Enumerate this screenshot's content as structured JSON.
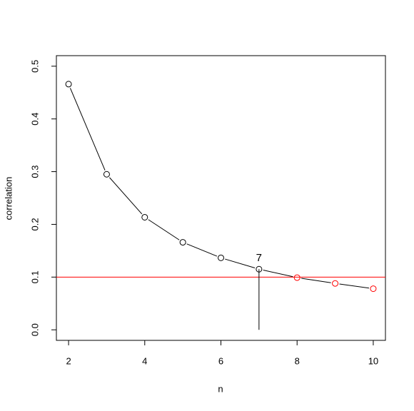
{
  "chart_data": {
    "type": "line",
    "x_label": "n",
    "y_label": "correlation",
    "x": [
      2,
      3,
      4,
      5,
      6,
      7,
      8,
      9,
      10
    ],
    "values": [
      0.466,
      0.295,
      0.2135,
      0.166,
      0.1365,
      0.115,
      0.099,
      0.088,
      0.078
    ],
    "point_colors": [
      "#000000",
      "#000000",
      "#000000",
      "#000000",
      "#000000",
      "#000000",
      "#ff0000",
      "#ff0000",
      "#ff0000"
    ],
    "line_color": "#000000",
    "reference_line": {
      "value": 0.1,
      "color": "#ff0000"
    },
    "annotation": {
      "text": "7",
      "x": 7
    },
    "xlim": [
      1.68,
      10.32
    ],
    "ylim": [
      -0.02,
      0.52
    ],
    "xticks": [
      2,
      4,
      6,
      8,
      10
    ],
    "yticks": [
      {
        "value": 0,
        "label": "0.0"
      },
      0.1,
      0.2,
      0.3,
      0.4,
      0.5
    ]
  }
}
